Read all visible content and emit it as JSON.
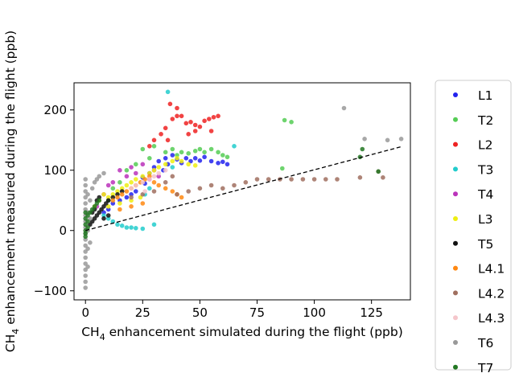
{
  "chart_data": {
    "type": "scatter",
    "title": "",
    "xlabel": "CH4 enhancement simulated during the flight (ppb)",
    "ylabel": "CH4 enhancement measured during the flight (ppb)",
    "xlabel_parts": {
      "pre": "CH",
      "sub": "4",
      "post": " enhancement simulated during the flight (ppb)"
    },
    "ylabel_parts": {
      "pre": "CH",
      "sub": "4",
      "post": " enhancement measured during the flight (ppb)"
    },
    "xlim": [
      -5,
      142
    ],
    "ylim": [
      -115,
      245
    ],
    "xticks": [
      0,
      25,
      50,
      75,
      100,
      125
    ],
    "yticks": [
      -100,
      0,
      100,
      200
    ],
    "grid": false,
    "legend_position": "outside-right",
    "reference_line": {
      "style": "dashed",
      "color": "#000000",
      "from": [
        0,
        0
      ],
      "to": [
        138,
        139
      ]
    },
    "series": [
      {
        "name": "L1",
        "color": "#2222ee",
        "points": [
          [
            30,
            105
          ],
          [
            32,
            115
          ],
          [
            35,
            120
          ],
          [
            36,
            110
          ],
          [
            38,
            125
          ],
          [
            40,
            118
          ],
          [
            42,
            112
          ],
          [
            44,
            120
          ],
          [
            46,
            115
          ],
          [
            48,
            120
          ],
          [
            50,
            116
          ],
          [
            52,
            122
          ],
          [
            55,
            115
          ],
          [
            58,
            112
          ],
          [
            60,
            114
          ],
          [
            62,
            110
          ],
          [
            34,
            100
          ],
          [
            28,
            95
          ],
          [
            26,
            78
          ],
          [
            22,
            65
          ],
          [
            20,
            60
          ],
          [
            18,
            55
          ],
          [
            15,
            50
          ],
          [
            12,
            45
          ],
          [
            10,
            35
          ],
          [
            8,
            30
          ],
          [
            25,
            88
          ]
        ]
      },
      {
        "name": "T2",
        "color": "#55cc55",
        "points": [
          [
            25,
            135
          ],
          [
            30,
            140
          ],
          [
            35,
            130
          ],
          [
            38,
            135
          ],
          [
            40,
            125
          ],
          [
            42,
            130
          ],
          [
            45,
            128
          ],
          [
            48,
            132
          ],
          [
            50,
            135
          ],
          [
            52,
            130
          ],
          [
            55,
            135
          ],
          [
            58,
            130
          ],
          [
            60,
            125
          ],
          [
            62,
            122
          ],
          [
            18,
            100
          ],
          [
            15,
            80
          ],
          [
            12,
            70
          ],
          [
            10,
            50
          ],
          [
            87,
            183
          ],
          [
            90,
            180
          ],
          [
            86,
            103
          ],
          [
            22,
            110
          ],
          [
            28,
            120
          ]
        ]
      },
      {
        "name": "L2",
        "color": "#ee2222",
        "points": [
          [
            37,
            210
          ],
          [
            40,
            203
          ],
          [
            42,
            190
          ],
          [
            44,
            178
          ],
          [
            46,
            180
          ],
          [
            48,
            175
          ],
          [
            50,
            172
          ],
          [
            52,
            182
          ],
          [
            54,
            185
          ],
          [
            56,
            188
          ],
          [
            58,
            190
          ],
          [
            38,
            185
          ],
          [
            35,
            170
          ],
          [
            33,
            160
          ],
          [
            30,
            150
          ],
          [
            45,
            160
          ],
          [
            48,
            165
          ],
          [
            36,
            150
          ],
          [
            28,
            140
          ],
          [
            55,
            165
          ],
          [
            40,
            190
          ]
        ]
      },
      {
        "name": "T3",
        "color": "#22cccc",
        "points": [
          [
            36,
            230
          ],
          [
            14,
            10
          ],
          [
            16,
            8
          ],
          [
            18,
            5
          ],
          [
            20,
            5
          ],
          [
            22,
            4
          ],
          [
            25,
            3
          ],
          [
            12,
            15
          ],
          [
            10,
            20
          ],
          [
            8,
            25
          ],
          [
            30,
            10
          ],
          [
            26,
            60
          ],
          [
            28,
            70
          ],
          [
            38,
            105
          ],
          [
            65,
            140
          ]
        ]
      },
      {
        "name": "T4",
        "color": "#bb33bb",
        "points": [
          [
            15,
            100
          ],
          [
            20,
            105
          ],
          [
            25,
            110
          ],
          [
            22,
            95
          ],
          [
            18,
            90
          ],
          [
            12,
            80
          ],
          [
            10,
            75
          ],
          [
            28,
            85
          ],
          [
            32,
            90
          ],
          [
            30,
            100
          ],
          [
            8,
            60
          ],
          [
            5,
            40
          ]
        ]
      },
      {
        "name": "L3",
        "color": "#eeee11",
        "points": [
          [
            8,
            60
          ],
          [
            10,
            55
          ],
          [
            12,
            60
          ],
          [
            14,
            65
          ],
          [
            16,
            70
          ],
          [
            18,
            75
          ],
          [
            20,
            80
          ],
          [
            22,
            85
          ],
          [
            25,
            90
          ],
          [
            28,
            95
          ],
          [
            30,
            100
          ],
          [
            32,
            105
          ],
          [
            35,
            110
          ],
          [
            38,
            115
          ],
          [
            40,
            120
          ],
          [
            42,
            115
          ],
          [
            45,
            110
          ],
          [
            48,
            108
          ],
          [
            6,
            50
          ],
          [
            4,
            40
          ],
          [
            15,
            45
          ],
          [
            20,
            50
          ],
          [
            24,
            55
          ],
          [
            10,
            40
          ]
        ]
      },
      {
        "name": "T5",
        "color": "#111111",
        "points": [
          [
            2,
            10
          ],
          [
            3,
            15
          ],
          [
            4,
            20
          ],
          [
            5,
            25
          ],
          [
            6,
            30
          ],
          [
            7,
            35
          ],
          [
            8,
            40
          ],
          [
            9,
            45
          ],
          [
            10,
            50
          ],
          [
            12,
            55
          ],
          [
            14,
            60
          ],
          [
            16,
            65
          ],
          [
            5,
            50
          ],
          [
            6,
            55
          ],
          [
            3,
            30
          ],
          [
            4,
            35
          ],
          [
            8,
            20
          ],
          [
            10,
            25
          ]
        ]
      },
      {
        "name": "L4.1",
        "color": "#ff8811",
        "points": [
          [
            12,
            50
          ],
          [
            14,
            55
          ],
          [
            16,
            60
          ],
          [
            18,
            65
          ],
          [
            20,
            70
          ],
          [
            22,
            75
          ],
          [
            24,
            80
          ],
          [
            26,
            85
          ],
          [
            28,
            90
          ],
          [
            30,
            80
          ],
          [
            32,
            75
          ],
          [
            35,
            70
          ],
          [
            38,
            65
          ],
          [
            40,
            60
          ],
          [
            42,
            55
          ],
          [
            20,
            40
          ],
          [
            15,
            35
          ],
          [
            25,
            45
          ]
        ]
      },
      {
        "name": "L4.2",
        "color": "#a06f5f",
        "points": [
          [
            40,
            60
          ],
          [
            45,
            65
          ],
          [
            50,
            70
          ],
          [
            55,
            75
          ],
          [
            60,
            70
          ],
          [
            65,
            75
          ],
          [
            70,
            80
          ],
          [
            75,
            85
          ],
          [
            80,
            85
          ],
          [
            85,
            85
          ],
          [
            90,
            85
          ],
          [
            95,
            85
          ],
          [
            100,
            85
          ],
          [
            105,
            85
          ],
          [
            110,
            85
          ],
          [
            120,
            88
          ],
          [
            128,
            98
          ],
          [
            130,
            88
          ],
          [
            30,
            65
          ],
          [
            25,
            60
          ],
          [
            20,
            55
          ],
          [
            35,
            80
          ],
          [
            38,
            90
          ]
        ]
      },
      {
        "name": "L4.3",
        "color": "#f5c6cb",
        "points": [
          [
            25,
            80
          ],
          [
            28,
            85
          ],
          [
            30,
            90
          ],
          [
            32,
            95
          ],
          [
            35,
            100
          ],
          [
            22,
            75
          ],
          [
            20,
            70
          ],
          [
            26,
            65
          ]
        ]
      },
      {
        "name": "T6",
        "color": "#999999",
        "points": [
          [
            0,
            -95
          ],
          [
            0,
            -85
          ],
          [
            0,
            -75
          ],
          [
            0,
            -65
          ],
          [
            0,
            -55
          ],
          [
            0,
            -45
          ],
          [
            0,
            -35
          ],
          [
            0,
            -25
          ],
          [
            0,
            -15
          ],
          [
            0,
            -5
          ],
          [
            0,
            5
          ],
          [
            0,
            15
          ],
          [
            0,
            25
          ],
          [
            0,
            35
          ],
          [
            0,
            45
          ],
          [
            0,
            55
          ],
          [
            0,
            65
          ],
          [
            0,
            75
          ],
          [
            0,
            85
          ],
          [
            1,
            -60
          ],
          [
            1,
            -30
          ],
          [
            1,
            0
          ],
          [
            1,
            30
          ],
          [
            1,
            60
          ],
          [
            2,
            -20
          ],
          [
            2,
            20
          ],
          [
            2,
            50
          ],
          [
            3,
            70
          ],
          [
            4,
            80
          ],
          [
            5,
            85
          ],
          [
            6,
            90
          ],
          [
            8,
            95
          ],
          [
            113,
            203
          ],
          [
            122,
            152
          ],
          [
            132,
            150
          ],
          [
            138,
            152
          ]
        ]
      },
      {
        "name": "T7",
        "color": "#227722",
        "points": [
          [
            0,
            0
          ],
          [
            0,
            10
          ],
          [
            0,
            20
          ],
          [
            0,
            30
          ],
          [
            0,
            -5
          ],
          [
            0,
            -10
          ],
          [
            1,
            5
          ],
          [
            1,
            15
          ],
          [
            1,
            25
          ],
          [
            2,
            30
          ],
          [
            3,
            35
          ],
          [
            4,
            40
          ],
          [
            5,
            45
          ],
          [
            6,
            50
          ],
          [
            120,
            122
          ],
          [
            121,
            135
          ],
          [
            128,
            98
          ]
        ]
      }
    ]
  }
}
